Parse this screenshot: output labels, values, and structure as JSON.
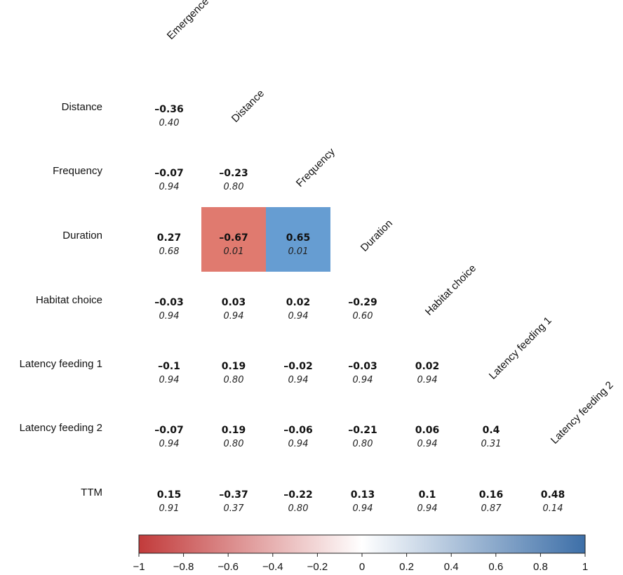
{
  "chart_data": {
    "type": "heatmap",
    "layout": "lower-triangle",
    "columns": [
      "Emergence time",
      "Distance",
      "Frequency",
      "Duration",
      "Habitat choice",
      "Latency feeding 1",
      "Latency feeding 2"
    ],
    "rows": [
      "Distance",
      "Frequency",
      "Duration",
      "Habitat choice",
      "Latency feeding 1",
      "Latency feeding 2",
      "TTM"
    ],
    "r_labels": [
      [
        "–0.36"
      ],
      [
        "–0.07",
        "–0.23"
      ],
      [
        "0.27",
        "–0.67",
        "0.65"
      ],
      [
        "–0.03",
        "0.03",
        "0.02",
        "–0.29"
      ],
      [
        "–0.1",
        "0.19",
        "–0.02",
        "–0.03",
        "0.02"
      ],
      [
        "–0.07",
        "0.19",
        "–0.06",
        "–0.21",
        "0.06",
        "0.4"
      ],
      [
        "0.15",
        "–0.37",
        "–0.22",
        "0.13",
        "0.1",
        "0.16",
        "0.48"
      ]
    ],
    "r_values": [
      [
        -0.36
      ],
      [
        -0.07,
        -0.23
      ],
      [
        0.27,
        -0.67,
        0.65
      ],
      [
        -0.03,
        0.03,
        0.02,
        -0.29
      ],
      [
        -0.1,
        0.19,
        -0.02,
        -0.03,
        0.02
      ],
      [
        -0.07,
        0.19,
        -0.06,
        -0.21,
        0.06,
        0.4
      ],
      [
        0.15,
        -0.37,
        -0.22,
        0.13,
        0.1,
        0.16,
        0.48
      ]
    ],
    "p_labels": [
      [
        "0.40"
      ],
      [
        "0.94",
        "0.80"
      ],
      [
        "0.68",
        "0.01",
        "0.01"
      ],
      [
        "0.94",
        "0.94",
        "0.94",
        "0.60"
      ],
      [
        "0.94",
        "0.80",
        "0.94",
        "0.94",
        "0.94"
      ],
      [
        "0.94",
        "0.80",
        "0.94",
        "0.80",
        "0.94",
        "0.31"
      ],
      [
        "0.91",
        "0.37",
        "0.80",
        "0.94",
        "0.94",
        "0.87",
        "0.14"
      ]
    ],
    "highlighted_cells": [
      {
        "row": 2,
        "col": 1,
        "color": "#e07a6f"
      },
      {
        "row": 2,
        "col": 2,
        "color": "#669dd2"
      }
    ],
    "colorbar": {
      "range": [
        -1,
        1
      ],
      "tick_labels": [
        "−1",
        "−0.8",
        "−0.6",
        "−0.4",
        "−0.2",
        "0",
        "0.2",
        "0.4",
        "0.6",
        "0.8",
        "1"
      ],
      "tick_values": [
        -1,
        -0.8,
        -0.6,
        -0.4,
        -0.2,
        0,
        0.2,
        0.4,
        0.6,
        0.8,
        1
      ],
      "colors": {
        "negative": "#c23b3b",
        "mid": "#ffffff",
        "positive": "#3d6fa8"
      }
    }
  }
}
